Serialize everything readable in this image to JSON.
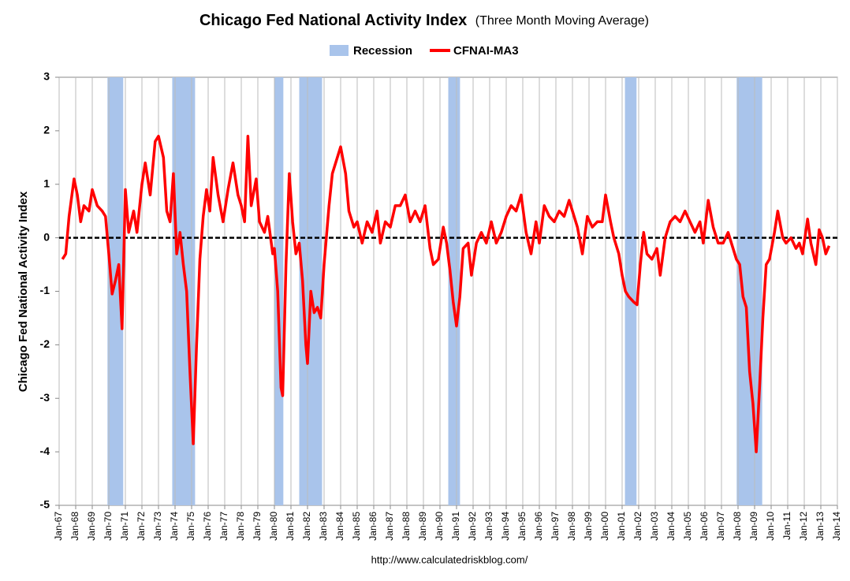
{
  "chart_data": {
    "type": "line",
    "title": "Chicago Fed National Activity Index",
    "subtitle": "(Three Month Moving Average)",
    "y_label": "Chicago Fed National Activity Index",
    "source": "http://www.calculatedriskblog.com/",
    "grid": "x",
    "zero_line": true,
    "xlim": [
      1967,
      2014
    ],
    "ylim": [
      -5,
      3
    ],
    "yticks": [
      -5,
      -4,
      -3,
      -2,
      -1,
      0,
      1,
      2,
      3
    ],
    "xticks": [
      {
        "value": 1967,
        "label": "Jan-67"
      },
      {
        "value": 1968,
        "label": "Jan-68"
      },
      {
        "value": 1969,
        "label": "Jan-69"
      },
      {
        "value": 1970,
        "label": "Jan-70"
      },
      {
        "value": 1971,
        "label": "Jan-71"
      },
      {
        "value": 1972,
        "label": "Jan-72"
      },
      {
        "value": 1973,
        "label": "Jan-73"
      },
      {
        "value": 1974,
        "label": "Jan-74"
      },
      {
        "value": 1975,
        "label": "Jan-75"
      },
      {
        "value": 1976,
        "label": "Jan-76"
      },
      {
        "value": 1977,
        "label": "Jan-77"
      },
      {
        "value": 1978,
        "label": "Jan-78"
      },
      {
        "value": 1979,
        "label": "Jan-79"
      },
      {
        "value": 1980,
        "label": "Jan-80"
      },
      {
        "value": 1981,
        "label": "Jan-81"
      },
      {
        "value": 1982,
        "label": "Jan-82"
      },
      {
        "value": 1983,
        "label": "Jan-83"
      },
      {
        "value": 1984,
        "label": "Jan-84"
      },
      {
        "value": 1985,
        "label": "Jan-85"
      },
      {
        "value": 1986,
        "label": "Jan-86"
      },
      {
        "value": 1987,
        "label": "Jan-87"
      },
      {
        "value": 1988,
        "label": "Jan-88"
      },
      {
        "value": 1989,
        "label": "Jan-89"
      },
      {
        "value": 1990,
        "label": "Jan-90"
      },
      {
        "value": 1991,
        "label": "Jan-91"
      },
      {
        "value": 1992,
        "label": "Jan-92"
      },
      {
        "value": 1993,
        "label": "Jan-93"
      },
      {
        "value": 1994,
        "label": "Jan-94"
      },
      {
        "value": 1995,
        "label": "Jan-95"
      },
      {
        "value": 1996,
        "label": "Jan-96"
      },
      {
        "value": 1997,
        "label": "Jan-97"
      },
      {
        "value": 1998,
        "label": "Jan-98"
      },
      {
        "value": 1999,
        "label": "Jan-99"
      },
      {
        "value": 2000,
        "label": "Jan-00"
      },
      {
        "value": 2001,
        "label": "Jan-01"
      },
      {
        "value": 2002,
        "label": "Jan-02"
      },
      {
        "value": 2003,
        "label": "Jan-03"
      },
      {
        "value": 2004,
        "label": "Jan-04"
      },
      {
        "value": 2005,
        "label": "Jan-05"
      },
      {
        "value": 2006,
        "label": "Jan-06"
      },
      {
        "value": 2007,
        "label": "Jan-07"
      },
      {
        "value": 2008,
        "label": "Jan-08"
      },
      {
        "value": 2009,
        "label": "Jan-09"
      },
      {
        "value": 2010,
        "label": "Jan-10"
      },
      {
        "value": 2011,
        "label": "Jan-11"
      },
      {
        "value": 2012,
        "label": "Jan-12"
      },
      {
        "value": 2013,
        "label": "Jan-13"
      },
      {
        "value": 2014,
        "label": "Jan-14"
      }
    ],
    "series": [
      {
        "name": "Recession",
        "color": "#a9c4eb",
        "kind": "band",
        "ranges": [
          [
            1969.92,
            1970.87
          ],
          [
            1973.83,
            1975.21
          ],
          [
            1980.0,
            1980.54
          ],
          [
            1981.5,
            1982.88
          ],
          [
            1990.5,
            1991.21
          ],
          [
            2001.17,
            2001.87
          ],
          [
            2007.92,
            2009.46
          ]
        ]
      },
      {
        "name": "CFNAI-MA3",
        "color": "#ff0000",
        "kind": "line",
        "x": [
          1967.2,
          1967.4,
          1967.6,
          1967.9,
          1968.1,
          1968.3,
          1968.5,
          1968.8,
          1969.0,
          1969.3,
          1969.6,
          1969.8,
          1970.0,
          1970.2,
          1970.4,
          1970.6,
          1970.8,
          1971.0,
          1971.2,
          1971.5,
          1971.7,
          1972.0,
          1972.2,
          1972.5,
          1972.8,
          1973.0,
          1973.3,
          1973.5,
          1973.7,
          1973.9,
          1974.1,
          1974.3,
          1974.5,
          1974.7,
          1974.9,
          1975.1,
          1975.3,
          1975.5,
          1975.7,
          1975.9,
          1976.1,
          1976.3,
          1976.6,
          1976.9,
          1977.2,
          1977.5,
          1977.8,
          1978.0,
          1978.2,
          1978.4,
          1978.6,
          1978.9,
          1979.1,
          1979.4,
          1979.6,
          1979.9,
          1980.0,
          1980.2,
          1980.4,
          1980.5,
          1980.7,
          1980.9,
          1981.1,
          1981.3,
          1981.5,
          1981.7,
          1981.9,
          1982.0,
          1982.2,
          1982.4,
          1982.6,
          1982.8,
          1983.0,
          1983.3,
          1983.5,
          1983.8,
          1984.0,
          1984.3,
          1984.5,
          1984.8,
          1985.0,
          1985.3,
          1985.6,
          1985.9,
          1986.2,
          1986.4,
          1986.7,
          1987.0,
          1987.3,
          1987.6,
          1987.9,
          1988.2,
          1988.5,
          1988.8,
          1989.1,
          1989.4,
          1989.6,
          1989.9,
          1990.2,
          1990.4,
          1990.6,
          1990.8,
          1991.0,
          1991.2,
          1991.4,
          1991.7,
          1991.9,
          1992.2,
          1992.5,
          1992.8,
          1993.1,
          1993.4,
          1993.7,
          1994.0,
          1994.3,
          1994.6,
          1994.9,
          1995.2,
          1995.5,
          1995.8,
          1996.0,
          1996.3,
          1996.6,
          1996.9,
          1997.2,
          1997.5,
          1997.8,
          1998.0,
          1998.3,
          1998.6,
          1998.9,
          1999.2,
          1999.5,
          1999.8,
          2000.0,
          2000.3,
          2000.5,
          2000.8,
          2001.0,
          2001.2,
          2001.4,
          2001.7,
          2001.9,
          2002.1,
          2002.3,
          2002.5,
          2002.8,
          2003.1,
          2003.3,
          2003.6,
          2003.9,
          2004.2,
          2004.5,
          2004.8,
          2005.1,
          2005.4,
          2005.7,
          2005.9,
          2006.2,
          2006.5,
          2006.8,
          2007.1,
          2007.4,
          2007.7,
          2007.9,
          2008.1,
          2008.3,
          2008.5,
          2008.7,
          2008.9,
          2009.1,
          2009.3,
          2009.5,
          2009.7,
          2009.9,
          2010.2,
          2010.4,
          2010.7,
          2010.9,
          2011.2,
          2011.5,
          2011.7,
          2011.9,
          2012.2,
          2012.4,
          2012.7,
          2012.9,
          2013.1,
          2013.3,
          2013.5
        ],
        "values": [
          -0.4,
          -0.3,
          0.4,
          1.1,
          0.8,
          0.3,
          0.6,
          0.5,
          0.9,
          0.6,
          0.5,
          0.4,
          -0.3,
          -1.05,
          -0.8,
          -0.5,
          -1.7,
          0.9,
          0.1,
          0.5,
          0.1,
          1.0,
          1.4,
          0.8,
          1.8,
          1.9,
          1.5,
          0.5,
          0.3,
          1.2,
          -0.3,
          0.1,
          -0.5,
          -1.0,
          -2.5,
          -3.85,
          -2.0,
          -0.4,
          0.4,
          0.9,
          0.5,
          1.5,
          0.8,
          0.3,
          0.9,
          1.4,
          0.8,
          0.6,
          0.3,
          1.9,
          0.6,
          1.1,
          0.3,
          0.1,
          0.4,
          -0.3,
          -0.2,
          -1.0,
          -2.8,
          -2.95,
          -0.5,
          1.2,
          0.3,
          -0.3,
          -0.1,
          -0.8,
          -2.0,
          -2.35,
          -1.0,
          -1.4,
          -1.3,
          -1.5,
          -0.5,
          0.6,
          1.2,
          1.5,
          1.7,
          1.2,
          0.5,
          0.2,
          0.3,
          -0.1,
          0.3,
          0.1,
          0.5,
          -0.1,
          0.3,
          0.2,
          0.6,
          0.6,
          0.8,
          0.3,
          0.5,
          0.3,
          0.6,
          -0.2,
          -0.5,
          -0.4,
          0.2,
          -0.1,
          -0.6,
          -1.2,
          -1.65,
          -1.1,
          -0.2,
          -0.1,
          -0.7,
          -0.1,
          0.1,
          -0.1,
          0.3,
          -0.1,
          0.1,
          0.4,
          0.6,
          0.5,
          0.8,
          0.1,
          -0.3,
          0.3,
          -0.1,
          0.6,
          0.4,
          0.3,
          0.5,
          0.4,
          0.7,
          0.5,
          0.2,
          -0.3,
          0.4,
          0.2,
          0.3,
          0.3,
          0.8,
          0.3,
          0.0,
          -0.3,
          -0.7,
          -1.0,
          -1.1,
          -1.2,
          -1.25,
          -0.5,
          0.1,
          -0.3,
          -0.4,
          -0.2,
          -0.7,
          0.0,
          0.3,
          0.4,
          0.3,
          0.5,
          0.3,
          0.1,
          0.3,
          -0.1,
          0.7,
          0.2,
          -0.1,
          -0.1,
          0.1,
          -0.2,
          -0.4,
          -0.5,
          -1.1,
          -1.3,
          -2.5,
          -3.1,
          -4.0,
          -2.8,
          -1.5,
          -0.5,
          -0.4,
          0.1,
          0.5,
          0.0,
          -0.1,
          0.0,
          -0.2,
          -0.1,
          -0.3,
          0.35,
          -0.1,
          -0.5,
          0.15,
          0.0,
          -0.3,
          -0.15
        ]
      }
    ]
  }
}
